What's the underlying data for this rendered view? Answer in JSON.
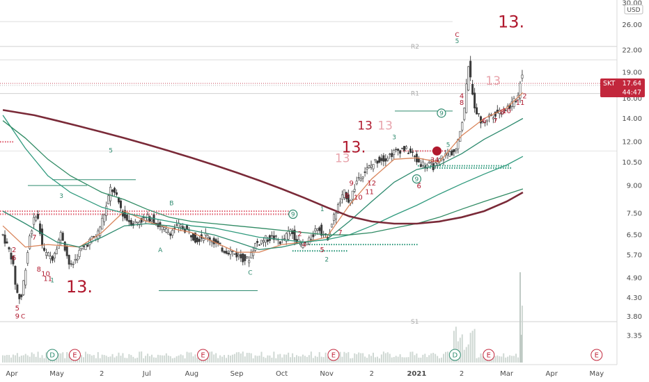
{
  "chart_data": {
    "type": "candlestick",
    "symbol": "SKT",
    "currency": "USD",
    "last_price": "17.64",
    "countdown": "44:47",
    "y_scale": "log",
    "ylim": [
      3.1,
      30.0
    ],
    "y_ticks": [
      "30.00",
      "26.00",
      "22.00",
      "19.00",
      "16.00",
      "14.00",
      "12.00",
      "10.50",
      "9.00",
      "7.50",
      "6.50",
      "5.70",
      "4.90",
      "4.30",
      "3.80",
      "3.35"
    ],
    "x_ticks": [
      {
        "label": "Apr",
        "month": 0.0
      },
      {
        "label": "May",
        "month": 1.0
      },
      {
        "label": "2",
        "month": 2.0
      },
      {
        "label": "Jul",
        "month": 3.0
      },
      {
        "label": "Aug",
        "month": 4.0
      },
      {
        "label": "Sep",
        "month": 5.0
      },
      {
        "label": "Oct",
        "month": 6.0
      },
      {
        "label": "Nov",
        "month": 7.0
      },
      {
        "label": "2",
        "month": 8.0
      },
      {
        "label": "2021",
        "month": 9.0
      },
      {
        "label": "2",
        "month": 10.0
      },
      {
        "label": "Mar",
        "month": 11.0
      },
      {
        "label": "Apr",
        "month": 12.0
      },
      {
        "label": "May",
        "month": 13.0
      }
    ],
    "price_path": [
      [
        -0.2,
        6.5
      ],
      [
        0.0,
        5.6
      ],
      [
        0.1,
        4.5
      ],
      [
        0.2,
        4.2
      ],
      [
        0.3,
        5.2
      ],
      [
        0.4,
        6.5
      ],
      [
        0.55,
        7.6
      ],
      [
        0.7,
        5.8
      ],
      [
        0.9,
        5.6
      ],
      [
        1.1,
        6.6
      ],
      [
        1.3,
        5.2
      ],
      [
        1.5,
        5.8
      ],
      [
        1.7,
        6.2
      ],
      [
        1.9,
        6.5
      ],
      [
        2.1,
        7.8
      ],
      [
        2.2,
        8.9
      ],
      [
        2.35,
        8.2
      ],
      [
        2.5,
        7.3
      ],
      [
        2.7,
        7.0
      ],
      [
        2.9,
        7.2
      ],
      [
        3.1,
        7.3
      ],
      [
        3.3,
        6.8
      ],
      [
        3.5,
        6.6
      ],
      [
        3.7,
        6.9
      ],
      [
        3.9,
        6.7
      ],
      [
        4.1,
        6.3
      ],
      [
        4.3,
        6.5
      ],
      [
        4.5,
        6.2
      ],
      [
        4.7,
        5.9
      ],
      [
        4.9,
        5.8
      ],
      [
        5.1,
        5.6
      ],
      [
        5.25,
        5.5
      ],
      [
        5.4,
        6.1
      ],
      [
        5.6,
        6.3
      ],
      [
        5.8,
        6.4
      ],
      [
        6.0,
        6.2
      ],
      [
        6.2,
        6.7
      ],
      [
        6.4,
        6.1
      ],
      [
        6.6,
        6.2
      ],
      [
        6.8,
        6.9
      ],
      [
        7.0,
        6.3
      ],
      [
        7.2,
        7.6
      ],
      [
        7.4,
        8.6
      ],
      [
        7.5,
        8.1
      ],
      [
        7.7,
        9.5
      ],
      [
        7.9,
        10.0
      ],
      [
        8.1,
        10.6
      ],
      [
        8.3,
        10.8
      ],
      [
        8.5,
        11.2
      ],
      [
        8.7,
        11.5
      ],
      [
        8.9,
        11.1
      ],
      [
        9.0,
        10.6
      ],
      [
        9.1,
        10.4
      ],
      [
        9.25,
        10.3
      ],
      [
        9.4,
        10.2
      ],
      [
        9.55,
        10.8
      ],
      [
        9.7,
        11.1
      ],
      [
        9.85,
        11.3
      ],
      [
        9.95,
        12.8
      ],
      [
        10.05,
        14.5
      ],
      [
        10.15,
        20.0
      ],
      [
        10.22,
        17.0
      ],
      [
        10.3,
        15.0
      ],
      [
        10.45,
        13.5
      ],
      [
        10.6,
        14.2
      ],
      [
        10.8,
        14.6
      ],
      [
        11.0,
        15.0
      ],
      [
        11.15,
        15.5
      ],
      [
        11.28,
        16.5
      ],
      [
        11.33,
        20.5
      ],
      [
        11.36,
        17.64
      ]
    ],
    "series": [
      {
        "name": "",
        "color": "#d9845a",
        "points": [
          [
            -0.2,
            6.9
          ],
          [
            0.3,
            6.0
          ],
          [
            0.8,
            6.1
          ],
          [
            1.5,
            6.0
          ],
          [
            2.0,
            6.6
          ],
          [
            2.5,
            7.6
          ],
          [
            3.0,
            7.1
          ],
          [
            3.5,
            6.8
          ],
          [
            4.0,
            6.6
          ],
          [
            4.5,
            6.2
          ],
          [
            5.0,
            5.8
          ],
          [
            5.5,
            5.8
          ],
          [
            6.0,
            6.1
          ],
          [
            6.5,
            6.2
          ],
          [
            7.0,
            6.4
          ],
          [
            7.5,
            7.9
          ],
          [
            8.0,
            9.4
          ],
          [
            8.5,
            10.7
          ],
          [
            9.0,
            10.8
          ],
          [
            9.5,
            10.5
          ],
          [
            10.0,
            12.5
          ],
          [
            10.5,
            14.0
          ],
          [
            11.0,
            15.0
          ],
          [
            11.36,
            16.6
          ]
        ]
      },
      {
        "name": "",
        "color": "#2d8a6e",
        "points": [
          [
            -0.2,
            7.6
          ],
          [
            0.3,
            7.0
          ],
          [
            1.0,
            6.2
          ],
          [
            1.5,
            6.0
          ],
          [
            2.0,
            6.4
          ],
          [
            2.5,
            6.9
          ],
          [
            3.0,
            7.0
          ],
          [
            3.5,
            6.9
          ],
          [
            4.0,
            6.7
          ],
          [
            4.5,
            6.5
          ],
          [
            5.0,
            6.2
          ],
          [
            5.5,
            5.9
          ],
          [
            6.0,
            6.0
          ],
          [
            6.5,
            6.2
          ],
          [
            7.0,
            6.3
          ],
          [
            7.5,
            7.1
          ],
          [
            8.0,
            8.1
          ],
          [
            8.5,
            9.2
          ],
          [
            9.0,
            10.0
          ],
          [
            9.5,
            10.3
          ],
          [
            10.0,
            11.1
          ],
          [
            10.5,
            12.2
          ],
          [
            11.0,
            13.2
          ],
          [
            11.36,
            14.0
          ]
        ]
      },
      {
        "name": "",
        "color": "#2f9a7d",
        "points": [
          [
            -0.2,
            14.3
          ],
          [
            0.3,
            11.5
          ],
          [
            0.8,
            9.6
          ],
          [
            1.3,
            8.6
          ],
          [
            2.0,
            7.8
          ],
          [
            2.5,
            7.5
          ],
          [
            3.0,
            7.3
          ],
          [
            3.5,
            7.1
          ],
          [
            4.0,
            6.9
          ],
          [
            4.5,
            6.8
          ],
          [
            5.0,
            6.6
          ],
          [
            5.5,
            6.4
          ],
          [
            6.0,
            6.3
          ],
          [
            6.5,
            6.2
          ],
          [
            7.0,
            6.3
          ],
          [
            7.5,
            6.5
          ],
          [
            8.0,
            6.9
          ],
          [
            8.5,
            7.4
          ],
          [
            9.0,
            7.9
          ],
          [
            9.5,
            8.5
          ],
          [
            10.0,
            9.1
          ],
          [
            10.5,
            9.7
          ],
          [
            11.0,
            10.3
          ],
          [
            11.36,
            10.9
          ]
        ]
      },
      {
        "name": "",
        "color": "#2f8a63",
        "points": [
          [
            -0.2,
            13.8
          ],
          [
            0.3,
            12.3
          ],
          [
            0.8,
            10.7
          ],
          [
            1.3,
            9.6
          ],
          [
            2.0,
            8.6
          ],
          [
            2.5,
            8.2
          ],
          [
            3.0,
            7.7
          ],
          [
            3.5,
            7.3
          ],
          [
            4.0,
            7.1
          ],
          [
            4.5,
            7.0
          ],
          [
            5.0,
            6.9
          ],
          [
            5.5,
            6.8
          ],
          [
            6.0,
            6.7
          ],
          [
            6.5,
            6.6
          ],
          [
            7.0,
            6.5
          ],
          [
            7.5,
            6.5
          ],
          [
            8.0,
            6.6
          ],
          [
            8.5,
            6.8
          ],
          [
            9.0,
            7.0
          ],
          [
            9.5,
            7.3
          ],
          [
            10.0,
            7.7
          ],
          [
            10.5,
            8.1
          ],
          [
            11.0,
            8.5
          ],
          [
            11.36,
            8.8
          ]
        ]
      },
      {
        "name": "",
        "color": "#7a2a38",
        "points": [
          [
            -0.2,
            14.8
          ],
          [
            0.5,
            14.3
          ],
          [
            1.0,
            13.8
          ],
          [
            1.5,
            13.3
          ],
          [
            2.0,
            12.8
          ],
          [
            2.5,
            12.3
          ],
          [
            3.0,
            11.8
          ],
          [
            3.5,
            11.3
          ],
          [
            4.0,
            10.8
          ],
          [
            4.5,
            10.3
          ],
          [
            5.0,
            9.8
          ],
          [
            5.5,
            9.3
          ],
          [
            6.0,
            8.8
          ],
          [
            6.5,
            8.3
          ],
          [
            7.0,
            7.8
          ],
          [
            7.5,
            7.35
          ],
          [
            8.0,
            7.1
          ],
          [
            8.5,
            7.0
          ],
          [
            9.0,
            7.0
          ],
          [
            9.5,
            7.1
          ],
          [
            10.0,
            7.3
          ],
          [
            10.5,
            7.6
          ],
          [
            11.0,
            8.1
          ],
          [
            11.36,
            8.6
          ]
        ]
      }
    ],
    "levels": [
      {
        "label": "R2",
        "price": 22.5
      },
      {
        "label": "R1",
        "price": 16.5
      },
      {
        "label": "S1",
        "price": 3.67
      }
    ],
    "annotations": [
      {
        "text": "13.",
        "month": 1.5,
        "price": 4.45,
        "color": "#b0192e",
        "size": 24
      },
      {
        "text": "13",
        "month": 7.85,
        "price": 13.0,
        "color": "#b0192e",
        "size": 17
      },
      {
        "text": "13",
        "month": 8.3,
        "price": 13.0,
        "color": "#e8a4ac",
        "size": 17
      },
      {
        "text": "13.",
        "month": 7.6,
        "price": 11.2,
        "color": "#b0192e",
        "size": 22
      },
      {
        "text": "13",
        "month": 7.35,
        "price": 10.5,
        "color": "#e8a4ac",
        "size": 17
      },
      {
        "text": "13",
        "month": 10.7,
        "price": 17.5,
        "color": "#e8a4ac",
        "size": 17
      },
      {
        "text": "13.",
        "month": 11.1,
        "price": 25.5,
        "color": "#b0192e",
        "size": 24
      },
      {
        "text": "5",
        "month": 2.2,
        "price": 11.2,
        "color": "#2d8a6e",
        "size": 9
      },
      {
        "text": "3",
        "month": 1.1,
        "price": 8.3,
        "color": "#2d8a6e",
        "size": 9
      },
      {
        "text": "B",
        "month": 3.55,
        "price": 7.9,
        "color": "#2d8a6e",
        "size": 9
      },
      {
        "text": "A",
        "month": 3.3,
        "price": 5.8,
        "color": "#2d8a6e",
        "size": 9
      },
      {
        "text": "C",
        "month": 5.3,
        "price": 5.0,
        "color": "#2d8a6e",
        "size": 9
      },
      {
        "text": "C",
        "month": 9.9,
        "price": 24.0,
        "color": "#b0192e",
        "size": 9
      },
      {
        "text": "5",
        "month": 9.9,
        "price": 23.0,
        "color": "#2d8a6e",
        "size": 9
      },
      {
        "text": "3",
        "month": 8.5,
        "price": 12.2,
        "color": "#2d8a6e",
        "size": 9
      },
      {
        "text": "2",
        "month": 7.0,
        "price": 5.45,
        "color": "#2d8a6e",
        "size": 9
      },
      {
        "text": "1",
        "month": 6.9,
        "price": 7.6,
        "color": "#2d8a6e",
        "size": 9
      },
      {
        "text": "5",
        "month": 0.12,
        "price": 3.95,
        "color": "#b0192e",
        "size": 10
      },
      {
        "text": "9",
        "month": 0.12,
        "price": 3.75,
        "color": "#b0192e",
        "size": 10
      },
      {
        "text": "C",
        "month": 0.25,
        "price": 3.75,
        "color": "#b0192e",
        "size": 9
      },
      {
        "text": "8",
        "month": 0.6,
        "price": 5.1,
        "color": "#b0192e",
        "size": 10
      },
      {
        "text": "10",
        "month": 0.75,
        "price": 4.95,
        "color": "#b0192e",
        "size": 10
      },
      {
        "text": "11",
        "month": 0.8,
        "price": 4.8,
        "color": "#b0192e",
        "size": 10
      },
      {
        "text": "1",
        "month": 0.9,
        "price": 4.75,
        "color": "#2d8a6e",
        "size": 9
      },
      {
        "text": "2",
        "month": 0.05,
        "price": 5.8,
        "color": "#b0192e",
        "size": 10
      },
      {
        "text": "6",
        "month": 0.05,
        "price": 5.5,
        "color": "#b0192e",
        "size": 10
      },
      {
        "text": "7",
        "month": 0.5,
        "price": 6.3,
        "color": "#b0192e",
        "size": 10
      },
      {
        "text": "2",
        "month": 6.4,
        "price": 6.45,
        "color": "#b0192e",
        "size": 10
      },
      {
        "text": "4",
        "month": 6.5,
        "price": 6.0,
        "color": "#b0192e",
        "size": 10
      },
      {
        "text": "5",
        "month": 6.9,
        "price": 5.8,
        "color": "#b0192e",
        "size": 10
      },
      {
        "text": "7",
        "month": 7.3,
        "price": 6.5,
        "color": "#b0192e",
        "size": 10
      },
      {
        "text": "8",
        "month": 7.45,
        "price": 8.3,
        "color": "#b0192e",
        "size": 10
      },
      {
        "text": "9",
        "month": 7.55,
        "price": 9.0,
        "color": "#b0192e",
        "size": 10
      },
      {
        "text": "10",
        "month": 7.7,
        "price": 8.2,
        "color": "#b0192e",
        "size": 10
      },
      {
        "text": "11",
        "month": 7.95,
        "price": 8.5,
        "color": "#b0192e",
        "size": 10
      },
      {
        "text": "12",
        "month": 8.0,
        "price": 9.0,
        "color": "#b0192e",
        "size": 10
      },
      {
        "text": "6",
        "month": 9.05,
        "price": 8.85,
        "color": "#b0192e",
        "size": 10
      },
      {
        "text": "2",
        "month": 9.05,
        "price": 9.15,
        "color": "#b0192e",
        "size": 10
      },
      {
        "text": "34",
        "month": 9.4,
        "price": 10.5,
        "color": "#b0192e",
        "size": 10
      },
      {
        "text": "5",
        "month": 9.7,
        "price": 11.6,
        "color": "#2d8a6e",
        "size": 9
      },
      {
        "text": "4",
        "month": 10.0,
        "price": 16.0,
        "color": "#b0192e",
        "size": 10
      },
      {
        "text": "8",
        "month": 10.0,
        "price": 15.3,
        "color": "#b0192e",
        "size": 10
      },
      {
        "text": "6",
        "month": 10.5,
        "price": 13.6,
        "color": "#b0192e",
        "size": 10
      },
      {
        "text": "7",
        "month": 10.75,
        "price": 13.6,
        "color": "#b0192e",
        "size": 10
      },
      {
        "text": "8",
        "month": 10.9,
        "price": 14.4,
        "color": "#b0192e",
        "size": 10
      },
      {
        "text": "10",
        "month": 11.0,
        "price": 14.5,
        "color": "#b0192e",
        "size": 10
      },
      {
        "text": "11",
        "month": 11.3,
        "price": 15.3,
        "color": "#b0192e",
        "size": 10
      },
      {
        "text": "2",
        "month": 11.4,
        "price": 16.0,
        "color": "#b0192e",
        "size": 10
      }
    ],
    "circled_markers": [
      {
        "text": "9",
        "month": 6.25,
        "price": 7.45,
        "color": "#2d8a6e"
      },
      {
        "text": "9",
        "month": 9.55,
        "price": 14.5,
        "color": "#2d8a6e"
      },
      {
        "text": "9",
        "month": 9.0,
        "price": 9.4,
        "color": "#2d8a6e"
      }
    ],
    "event_markers": [
      {
        "text": "D",
        "month": 0.9
      },
      {
        "text": "E",
        "month": 1.4
      },
      {
        "text": "E",
        "month": 4.25
      },
      {
        "text": "E",
        "month": 7.15
      },
      {
        "text": "D",
        "month": 9.85
      },
      {
        "text": "E",
        "month": 10.6
      },
      {
        "text": "E",
        "month": 13.0
      }
    ]
  }
}
